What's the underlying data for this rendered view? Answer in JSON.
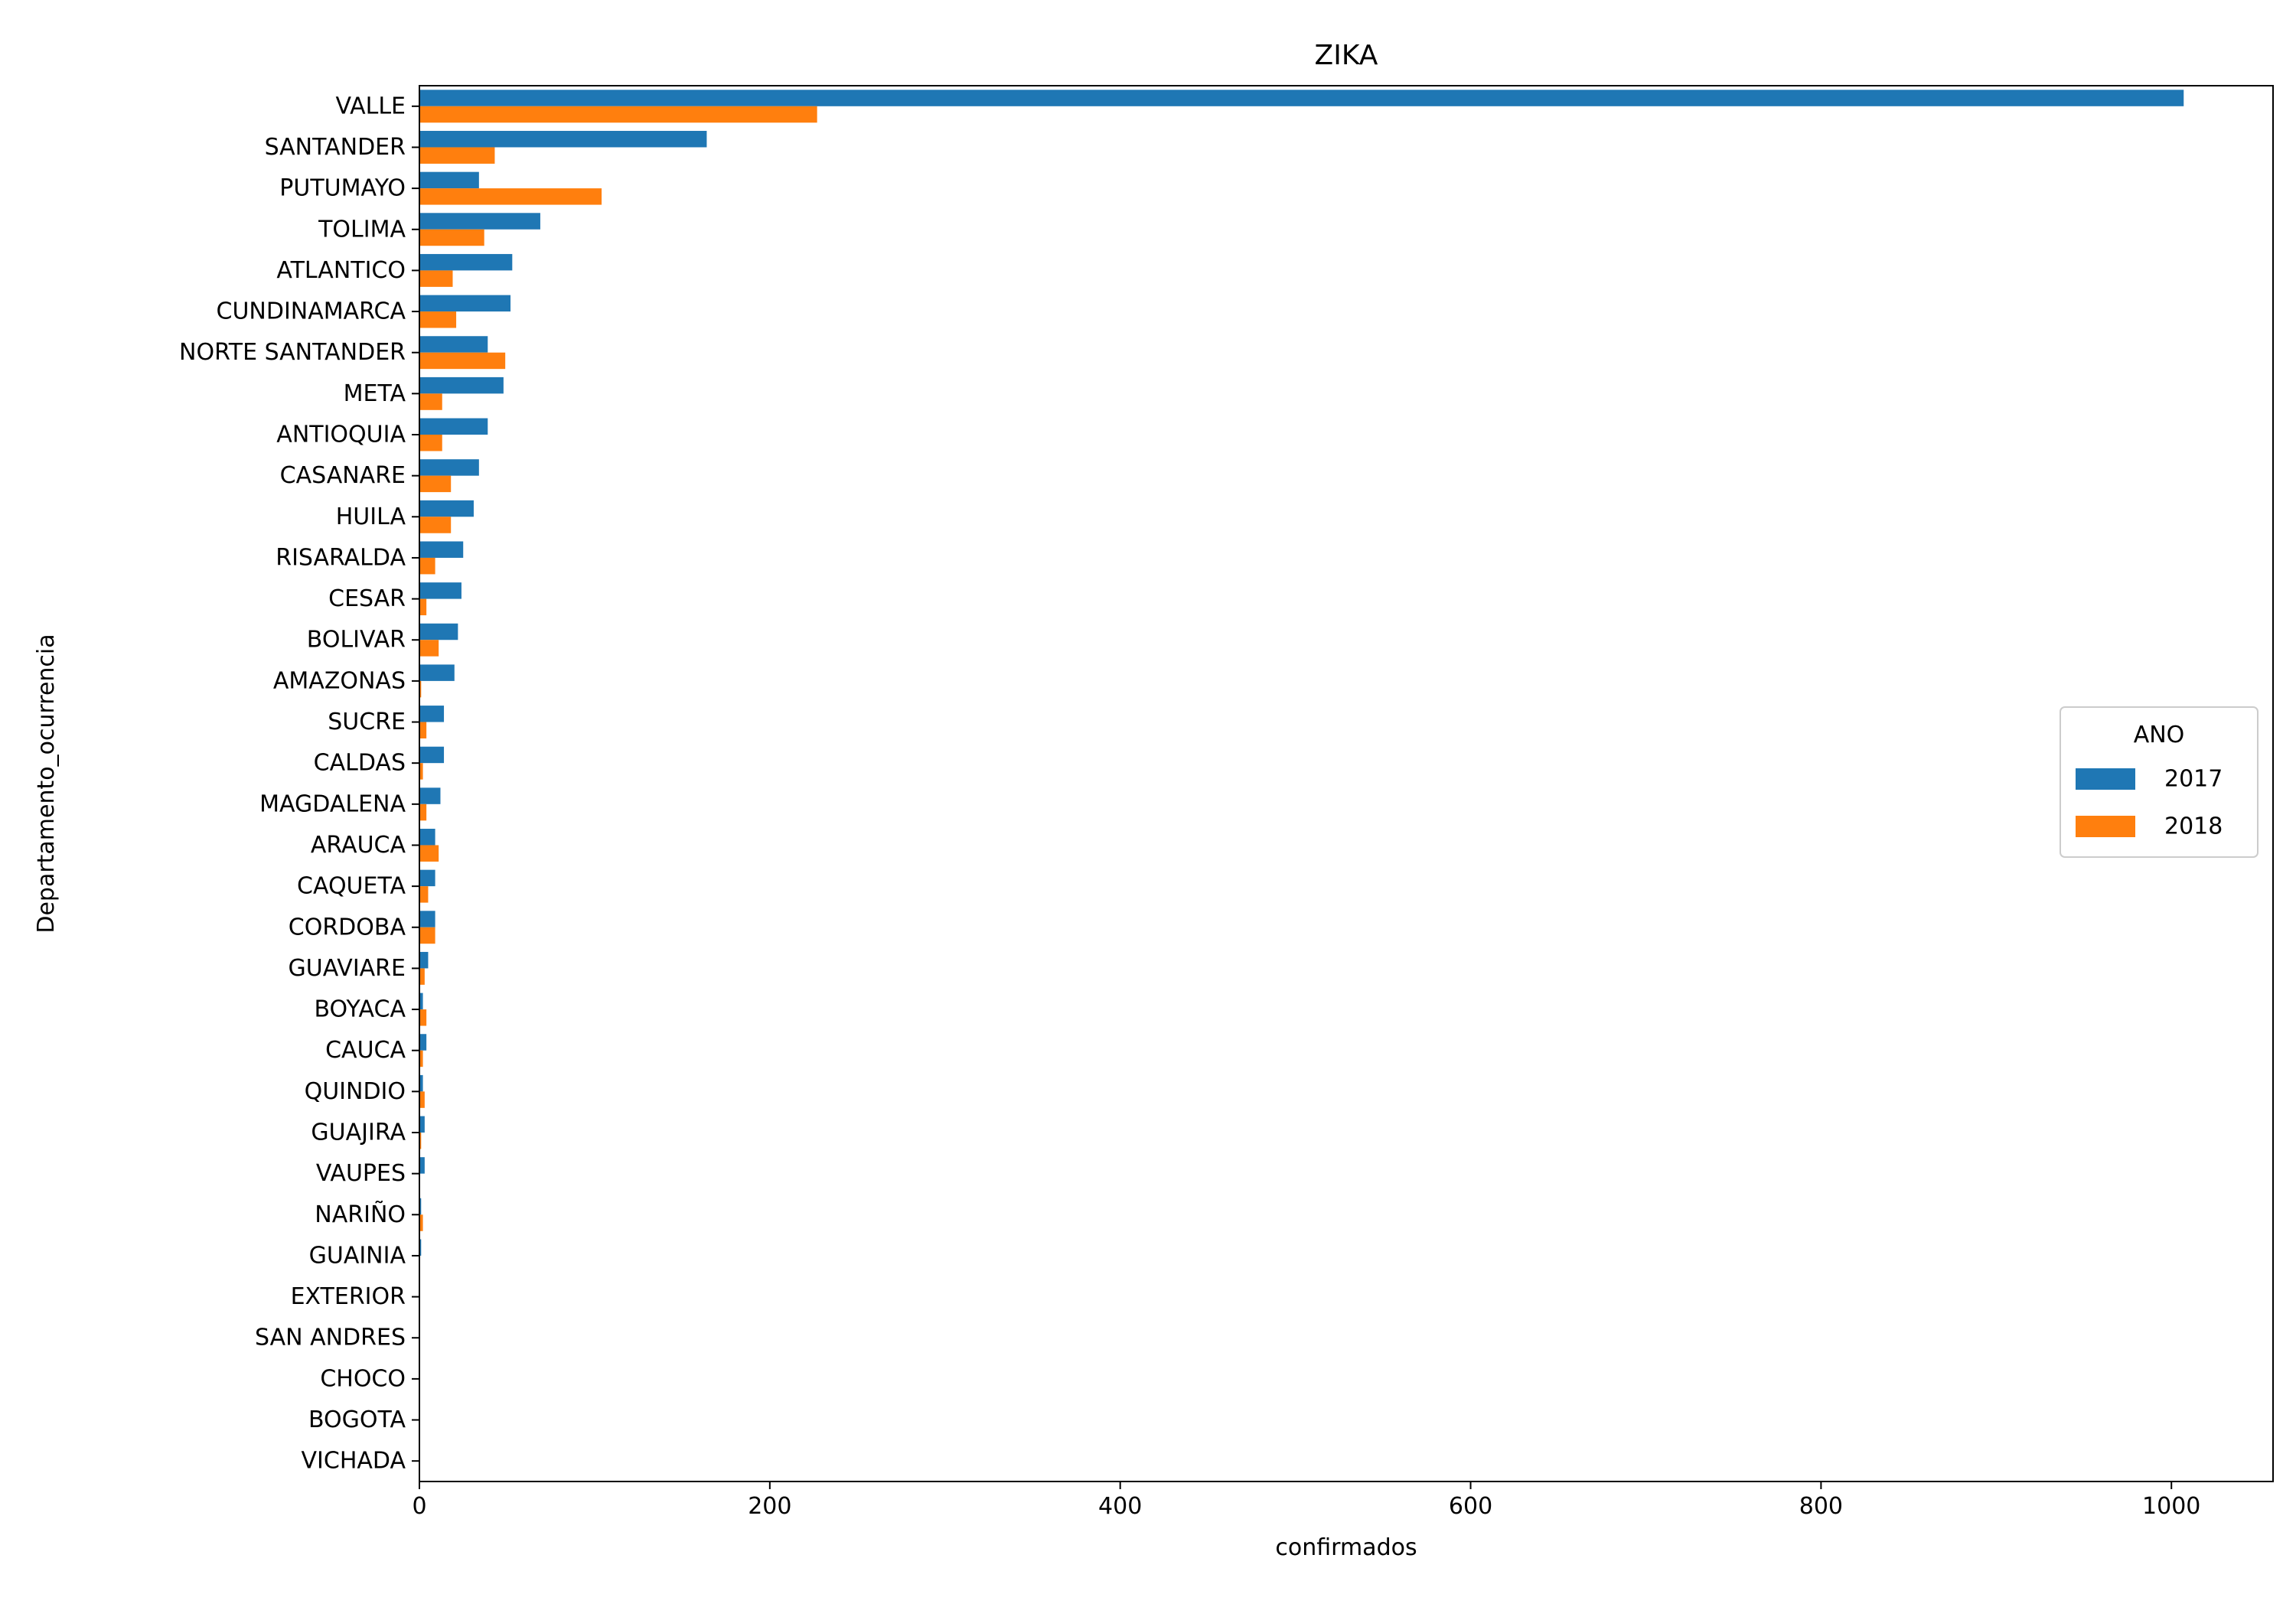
{
  "chart_data": {
    "type": "bar",
    "orientation": "horizontal",
    "title": "ZIKA",
    "xlabel": "confirmados",
    "ylabel": "Departamento_ocurrencia",
    "xlim": [
      0,
      1058
    ],
    "xticks": [
      0,
      200,
      400,
      600,
      800,
      1000
    ],
    "grid": false,
    "legend": {
      "title": "ANO",
      "placement": "center-right"
    },
    "categories": [
      "VALLE",
      "SANTANDER",
      "PUTUMAYO",
      "TOLIMA",
      "ATLANTICO",
      "CUNDINAMARCA",
      "NORTE SANTANDER",
      "META",
      "ANTIOQUIA",
      "CASANARE",
      "HUILA",
      "RISARALDA",
      "CESAR",
      "BOLIVAR",
      "AMAZONAS",
      "SUCRE",
      "CALDAS",
      "MAGDALENA",
      "ARAUCA",
      "CAQUETA",
      "CORDOBA",
      "GUAVIARE",
      "BOYACA",
      "CAUCA",
      "QUINDIO",
      "GUAJIRA",
      "VAUPES",
      "NARIÑO",
      "GUAINIA",
      "EXTERIOR",
      "SAN ANDRES",
      "CHOCO",
      "BOGOTA",
      "VICHADA"
    ],
    "series": [
      {
        "name": "2017",
        "color": "#1f77b4",
        "values": [
          1007,
          164,
          34,
          69,
          53,
          52,
          39,
          48,
          39,
          34,
          31,
          25,
          24,
          22,
          20,
          14,
          14,
          12,
          9,
          9,
          9,
          5,
          2,
          4,
          2,
          3,
          3,
          1,
          1,
          0,
          0,
          0,
          0,
          0
        ]
      },
      {
        "name": "2018",
        "color": "#ff7f0e",
        "values": [
          227,
          43,
          104,
          37,
          19,
          21,
          49,
          13,
          13,
          18,
          18,
          9,
          4,
          11,
          1,
          4,
          2,
          4,
          11,
          5,
          9,
          3,
          4,
          2,
          3,
          1,
          0,
          2,
          0,
          0,
          0,
          0,
          0,
          0
        ]
      }
    ]
  }
}
